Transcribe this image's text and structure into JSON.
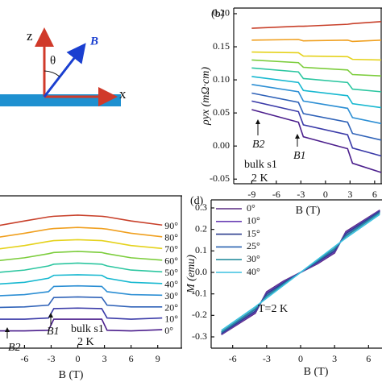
{
  "diagram": {
    "z": "z",
    "x": "x",
    "B": "B",
    "theta": "θ"
  },
  "chart_data": [
    {
      "type": "line",
      "label": "(b)",
      "ylabel": "ρyx (mΩ·cm)",
      "xlabel": "B (T)",
      "x": [
        -9,
        -3.3,
        -2.7,
        2.7,
        3.3,
        6.8
      ],
      "xlim": [
        -11.2,
        6.9
      ],
      "ylim": [
        -0.057,
        0.2085
      ],
      "xticks": [
        -9,
        -6,
        -3,
        0,
        3,
        6
      ],
      "yticks": [
        {
          "value": 0.2,
          "label": "0.20"
        },
        0.15,
        {
          "value": 0.1,
          "label": "0.10"
        },
        0.05,
        {
          "value": 0,
          "label": "0.00"
        },
        -0.05
      ],
      "annotations": [
        "B2",
        "B1",
        "bulk s1",
        "2 K"
      ],
      "series": [
        {
          "color": "#4b1e8c",
          "values": [
            0.055,
            0.036,
            0.014,
            -0.004,
            -0.026,
            -0.04
          ]
        },
        {
          "color": "#3a3aa8",
          "values": [
            0.068,
            0.052,
            0.032,
            0.017,
            -0.003,
            -0.015
          ]
        },
        {
          "color": "#2f62b8",
          "values": [
            0.08,
            0.066,
            0.049,
            0.036,
            0.019,
            0.009
          ]
        },
        {
          "color": "#2d8fd4",
          "values": [
            0.093,
            0.082,
            0.068,
            0.057,
            0.043,
            0.034
          ]
        },
        {
          "color": "#17b8d0",
          "values": [
            0.105,
            0.096,
            0.084,
            0.076,
            0.064,
            0.058
          ]
        },
        {
          "color": "#2cc6a0",
          "values": [
            0.118,
            0.112,
            0.102,
            0.096,
            0.086,
            0.082
          ]
        },
        {
          "color": "#7ccd3c",
          "values": [
            0.13,
            0.126,
            0.119,
            0.115,
            0.108,
            0.106
          ]
        },
        {
          "color": "#e5d21c",
          "values": [
            0.142,
            0.141,
            0.136,
            0.135,
            0.131,
            0.13
          ]
        },
        {
          "color": "#f0a020",
          "values": [
            0.16,
            0.161,
            0.159,
            0.16,
            0.158,
            0.16
          ]
        },
        {
          "color": "#c8402a",
          "values": [
            0.178,
            0.181,
            0.181,
            0.184,
            0.185,
            0.188
          ]
        }
      ]
    },
    {
      "type": "line",
      "xlabel": "B (T)",
      "x": [
        -9,
        -6,
        -3.3,
        -2.7,
        0,
        2.7,
        3.3,
        6,
        9.5
      ],
      "xlim": [
        -8.94,
        11.75
      ],
      "ylim": [
        -0.48,
        12.55
      ],
      "xticks": [
        -6,
        -3,
        0,
        3,
        6,
        9
      ],
      "annotations": [
        "B2",
        "B1",
        "bulk s1",
        "2 K"
      ],
      "series": [
        {
          "name": "0°",
          "color": "#4b1e8c",
          "values": [
            1,
            1,
            1.05,
            2,
            2,
            2,
            1.05,
            1,
            1.1
          ]
        },
        {
          "name": "10°",
          "color": "#3a3aa8",
          "values": [
            2,
            2,
            2.1,
            2.9,
            2.95,
            2.9,
            2.1,
            2,
            2.1
          ]
        },
        {
          "name": "20°",
          "color": "#2f62b8",
          "values": [
            3,
            3.05,
            3.2,
            3.85,
            3.9,
            3.85,
            3.2,
            3.05,
            3.05
          ]
        },
        {
          "name": "30°",
          "color": "#2d8fd4",
          "values": [
            4,
            4.1,
            4.35,
            4.8,
            4.85,
            4.8,
            4.35,
            4.1,
            4.05
          ]
        },
        {
          "name": "40°",
          "color": "#17b8d0",
          "values": [
            5,
            5.15,
            5.5,
            5.75,
            5.8,
            5.75,
            5.5,
            5.15,
            5.05
          ]
        },
        {
          "name": "50°",
          "color": "#2cc6a0",
          "values": [
            6,
            6.2,
            6.55,
            6.7,
            6.8,
            6.7,
            6.55,
            6.2,
            6.05
          ]
        },
        {
          "name": "60°",
          "color": "#7ccd3c",
          "values": [
            7,
            7.25,
            7.6,
            7.7,
            7.8,
            7.7,
            7.6,
            7.25,
            7.05
          ]
        },
        {
          "name": "70°",
          "color": "#e5d21c",
          "values": [
            8,
            8.3,
            8.65,
            8.72,
            8.8,
            8.72,
            8.65,
            8.3,
            8.05
          ]
        },
        {
          "name": "80°",
          "color": "#f0a020",
          "values": [
            9,
            9.35,
            9.7,
            9.75,
            9.85,
            9.75,
            9.7,
            9.35,
            9.05
          ]
        },
        {
          "name": "90°",
          "color": "#c8402a",
          "values": [
            10,
            10.4,
            10.75,
            10.8,
            10.9,
            10.8,
            10.75,
            10.4,
            10.05
          ]
        }
      ]
    },
    {
      "type": "line",
      "label": "(d)",
      "ylabel": "M (emu)",
      "xlabel": "B (T)",
      "x": [
        -7,
        -4,
        -3,
        -1.5,
        0,
        1.5,
        3,
        4,
        7
      ],
      "xlim": [
        -7.9,
        7.33
      ],
      "ylim": [
        -0.3525,
        0.3375
      ],
      "xticks": [
        -6,
        -3,
        0,
        3,
        6
      ],
      "yticks": [
        0.3,
        0.2,
        0.1,
        {
          "value": 0,
          "label": "0.0"
        },
        -0.1,
        -0.2,
        -0.3
      ],
      "annotations": [
        "T=2 K"
      ],
      "series": [
        {
          "name": "0°",
          "color": "#5a2a82",
          "values": [
            -0.29,
            -0.19,
            -0.09,
            -0.04,
            0,
            0.04,
            0.09,
            0.19,
            0.29
          ]
        },
        {
          "name": "10°",
          "color": "#6a3fb5",
          "values": [
            -0.288,
            -0.185,
            -0.095,
            -0.044,
            0,
            0.044,
            0.095,
            0.185,
            0.288
          ]
        },
        {
          "name": "15°",
          "color": "#2e3f8f",
          "values": [
            -0.285,
            -0.18,
            -0.1,
            -0.048,
            0,
            0.048,
            0.1,
            0.18,
            0.285
          ]
        },
        {
          "name": "25°",
          "color": "#2a62b0",
          "values": [
            -0.28,
            -0.172,
            -0.108,
            -0.053,
            0,
            0.053,
            0.108,
            0.172,
            0.28
          ]
        },
        {
          "name": "30°",
          "color": "#2a8f9f",
          "values": [
            -0.277,
            -0.168,
            -0.112,
            -0.056,
            0,
            0.056,
            0.112,
            0.168,
            0.277
          ]
        },
        {
          "name": "40°",
          "color": "#3cc0e0",
          "values": [
            -0.27,
            -0.16,
            -0.12,
            -0.06,
            0,
            0.06,
            0.12,
            0.16,
            0.27
          ]
        }
      ]
    }
  ]
}
